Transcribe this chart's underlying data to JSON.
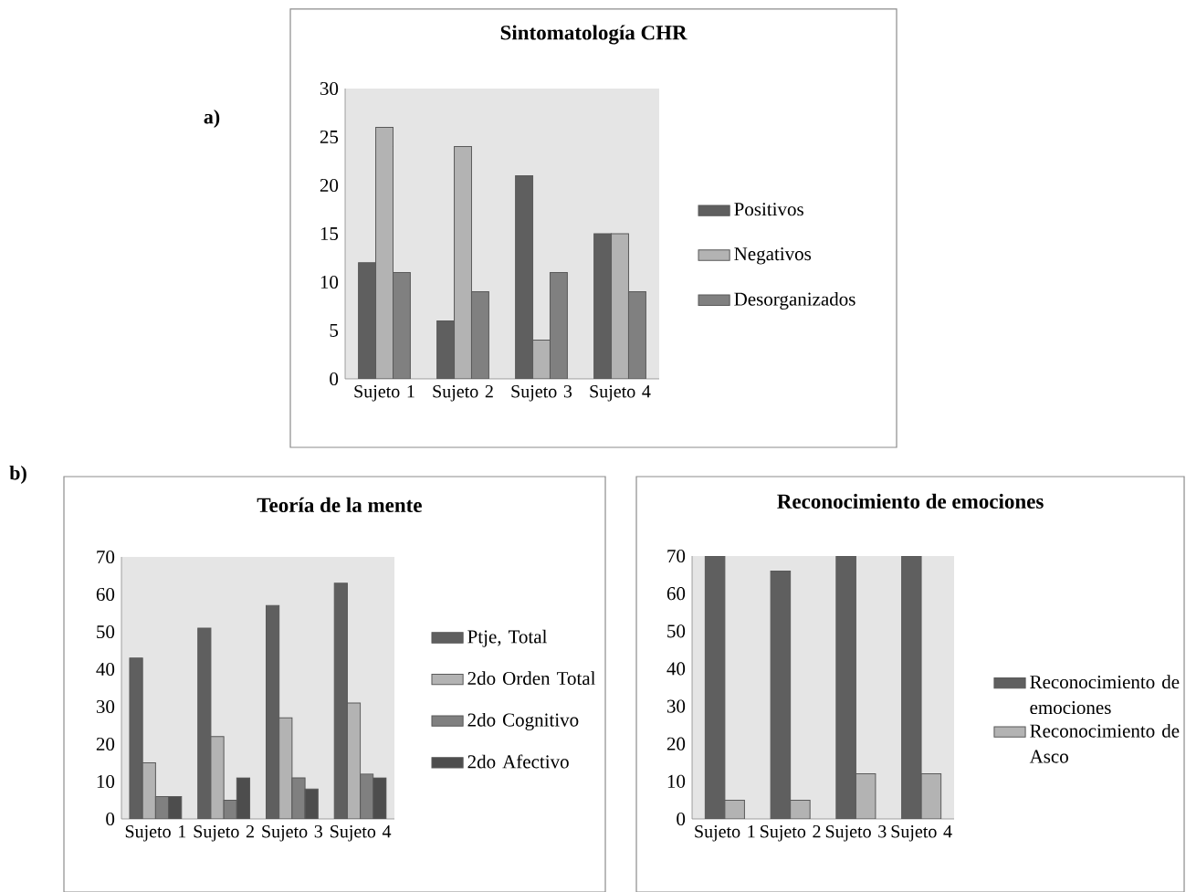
{
  "chart_data": [
    {
      "type": "bar",
      "title": "Sintomatología CHR",
      "annotations": [
        "a)"
      ],
      "categories": [
        "Sujeto 1",
        "Sujeto 2",
        "Sujeto 3",
        "Sujeto 4"
      ],
      "series": [
        {
          "name": "Positivos",
          "color": "#5f5f5f",
          "values": [
            12,
            6,
            21,
            15
          ]
        },
        {
          "name": "Negativos",
          "color": "#b3b3b3",
          "values": [
            26,
            24,
            4,
            15
          ]
        },
        {
          "name": "Desorganizados",
          "color": "#808080",
          "values": [
            11,
            9,
            11,
            9
          ]
        }
      ],
      "ylim": [
        0,
        30
      ],
      "yticks": [
        0,
        5,
        10,
        15,
        20,
        25,
        30
      ],
      "legend": "right"
    },
    {
      "type": "bar",
      "title": "Teoría de la mente",
      "annotations": [
        "b)"
      ],
      "categories": [
        "Sujeto 1",
        "Sujeto 2",
        "Sujeto 3",
        "Sujeto 4"
      ],
      "series": [
        {
          "name": "Ptje, Total",
          "color": "#5f5f5f",
          "values": [
            43,
            51,
            57,
            63
          ]
        },
        {
          "name": "2do Orden Total",
          "color": "#b3b3b3",
          "values": [
            15,
            22,
            27,
            31
          ]
        },
        {
          "name": "2do Cognitivo",
          "color": "#808080",
          "values": [
            6,
            5,
            11,
            12
          ]
        },
        {
          "name": "2do Afectivo",
          "color": "#4d4d4d",
          "values": [
            6,
            11,
            8,
            11
          ]
        }
      ],
      "ylim": [
        0,
        70
      ],
      "yticks": [
        0,
        10,
        20,
        30,
        40,
        50,
        60,
        70
      ],
      "legend": "right"
    },
    {
      "type": "bar",
      "title": "Reconocimiento de emociones",
      "categories": [
        "Sujeto 1",
        "Sujeto 2",
        "Sujeto 3",
        "Sujeto 4"
      ],
      "series": [
        {
          "name": "Reconocimiento de emociones",
          "color": "#5f5f5f",
          "values": [
            70,
            66,
            70,
            70
          ]
        },
        {
          "name": "Reconocimiento de Asco",
          "color": "#b3b3b3",
          "values": [
            5,
            5,
            12,
            12
          ]
        }
      ],
      "ylim": [
        0,
        70
      ],
      "yticks": [
        0,
        10,
        20,
        30,
        40,
        50,
        60,
        70
      ],
      "legend": "right"
    }
  ]
}
